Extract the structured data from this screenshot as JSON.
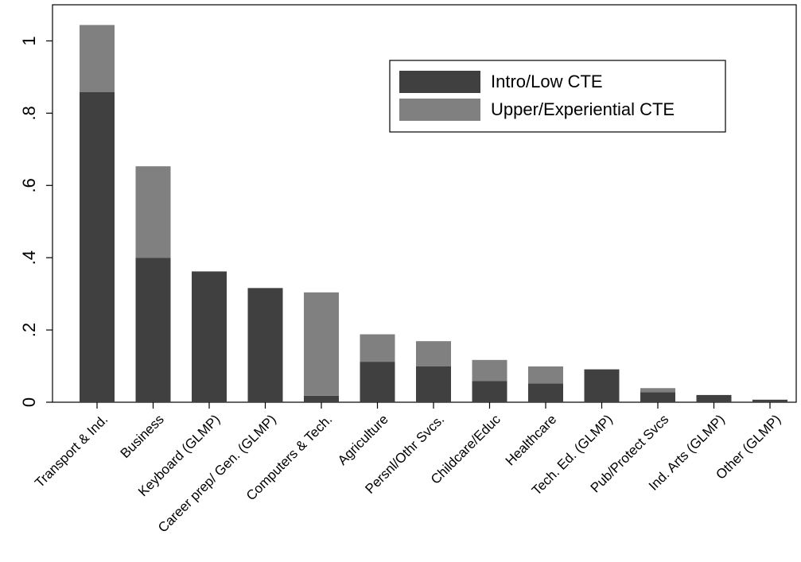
{
  "chart_data": {
    "type": "bar",
    "stacked": true,
    "categories": [
      "Transport & Ind.",
      "Business",
      "Keyboard (GLMP)",
      "Career prep/ Gen. (GLMP)",
      "Computers & Tech.",
      "Agriculture",
      "Persnl/Othr Svcs.",
      "Childcare/Educ",
      "Healthcare",
      "Tech. Ed. (GLMP)",
      "Pub/Protect Svcs",
      "Ind. Arts (GLMP)",
      "Other (GLMP)"
    ],
    "series": [
      {
        "name": "Intro/Low CTE",
        "color": "#404040",
        "values": [
          0.858,
          0.4,
          0.362,
          0.316,
          0.018,
          0.112,
          0.099,
          0.059,
          0.052,
          0.091,
          0.028,
          0.02,
          0.007
        ]
      },
      {
        "name": "Upper/Experiential CTE",
        "color": "#808080",
        "values": [
          0.186,
          0.253,
          0.0,
          0.0,
          0.286,
          0.076,
          0.07,
          0.058,
          0.047,
          0.0,
          0.011,
          0.0,
          0.0
        ]
      }
    ],
    "yticks": [
      0,
      0.2,
      0.4,
      0.6,
      0.8,
      1
    ],
    "ytick_labels": [
      "0",
      ".2",
      ".4",
      ".6",
      ".8",
      "1"
    ],
    "ylim": [
      0,
      1.1
    ],
    "legend": {
      "position": "top-right"
    },
    "grid": false
  }
}
